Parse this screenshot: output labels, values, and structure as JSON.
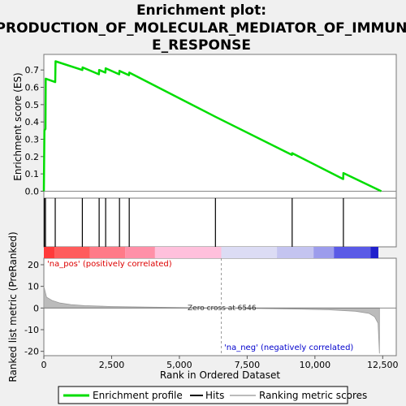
{
  "chart_data": {
    "type": "line",
    "title_lines": [
      "Enrichment plot:",
      "PRODUCTION_OF_MOLECULAR_MEDIATOR_OF_IMMUN",
      "E_RESPONSE"
    ],
    "top_panel": {
      "ylabel": "Enrichment score (ES)",
      "ylim": [
        -0.04,
        0.79
      ],
      "yticks": [
        "0.0",
        "0.1",
        "0.2",
        "0.3",
        "0.4",
        "0.5",
        "0.6",
        "0.7"
      ],
      "ytick_values": [
        0.0,
        0.1,
        0.2,
        0.3,
        0.4,
        0.5,
        0.6,
        0.7
      ],
      "series": [
        {
          "name": "Enrichment profile",
          "color": "#00dd00",
          "points": [
            [
              0,
              0.0
            ],
            [
              20,
              0.35
            ],
            [
              60,
              0.36
            ],
            [
              70,
              0.65
            ],
            [
              420,
              0.63
            ],
            [
              430,
              0.75
            ],
            [
              1420,
              0.7
            ],
            [
              1430,
              0.715
            ],
            [
              2030,
              0.675
            ],
            [
              2040,
              0.7
            ],
            [
              2270,
              0.685
            ],
            [
              2280,
              0.71
            ],
            [
              2780,
              0.675
            ],
            [
              2790,
              0.695
            ],
            [
              3140,
              0.67
            ],
            [
              3150,
              0.685
            ],
            [
              6330,
              0.43
            ],
            [
              9150,
              0.21
            ],
            [
              9160,
              0.22
            ],
            [
              11040,
              0.07
            ],
            [
              11050,
              0.105
            ],
            [
              12450,
              0.0
            ]
          ]
        }
      ],
      "hits": [
        20,
        60,
        420,
        1420,
        2040,
        2280,
        2790,
        3150,
        6330,
        9160,
        11050
      ]
    },
    "rank_bar": {
      "segments": [
        {
          "x0": 0,
          "x1": 400,
          "color": "#ff3a3a"
        },
        {
          "x0": 400,
          "x1": 1700,
          "color": "#ff5c5c"
        },
        {
          "x0": 1700,
          "x1": 3000,
          "color": "#ff7a88"
        },
        {
          "x0": 3000,
          "x1": 4100,
          "color": "#ff90a8"
        },
        {
          "x0": 4100,
          "x1": 6546,
          "color": "#ffc0dc"
        },
        {
          "x0": 6546,
          "x1": 8600,
          "color": "#dcdcf4"
        },
        {
          "x0": 8600,
          "x1": 9950,
          "color": "#c4c4f0"
        },
        {
          "x0": 9950,
          "x1": 10700,
          "color": "#9c9cec"
        },
        {
          "x0": 10700,
          "x1": 12050,
          "color": "#5a5ae6"
        },
        {
          "x0": 12050,
          "x1": 12340,
          "color": "#2020cc"
        }
      ]
    },
    "bottom_panel": {
      "ylabel_line1": "Ranked list metric (PreRanked)",
      "ylim": [
        -22,
        23
      ],
      "yticks": [
        "20",
        "10",
        "0",
        "-10",
        "-20"
      ],
      "ytick_values": [
        20,
        10,
        0,
        -10,
        -20
      ],
      "profile": [
        [
          0,
          10.0
        ],
        [
          100,
          5.0
        ],
        [
          300,
          3.5
        ],
        [
          600,
          2.3
        ],
        [
          1000,
          1.6
        ],
        [
          1500,
          1.1
        ],
        [
          2500,
          0.7
        ],
        [
          4000,
          0.4
        ],
        [
          5500,
          0.15
        ],
        [
          6546,
          0.0
        ],
        [
          8000,
          -0.25
        ],
        [
          9500,
          -0.5
        ],
        [
          10500,
          -0.8
        ],
        [
          11500,
          -1.5
        ],
        [
          12000,
          -2.5
        ],
        [
          12200,
          -4.0
        ],
        [
          12330,
          -7.0
        ],
        [
          12380,
          -21.0
        ]
      ],
      "pos_label": "'na_pos' (positively correlated)",
      "neg_label": "'na_neg' (negatively correlated)",
      "zero_cross_label": "Zero cross at 6546",
      "zero_cross": 6546
    },
    "xaxis": {
      "label": "Rank in Ordered Dataset",
      "xlim": [
        0,
        13000
      ],
      "ticks": [
        "0",
        "2,500",
        "5,000",
        "7,500",
        "10,000",
        "12,500"
      ],
      "tick_values": [
        0,
        2500,
        5000,
        7500,
        10000,
        12500
      ]
    },
    "legend": {
      "position": "bottom",
      "entries": [
        {
          "label": "Enrichment profile",
          "color": "#00dd00"
        },
        {
          "label": "Hits",
          "color": "#000000"
        },
        {
          "label": "Ranking metric scores",
          "color": "#bbbbbb"
        }
      ]
    }
  }
}
